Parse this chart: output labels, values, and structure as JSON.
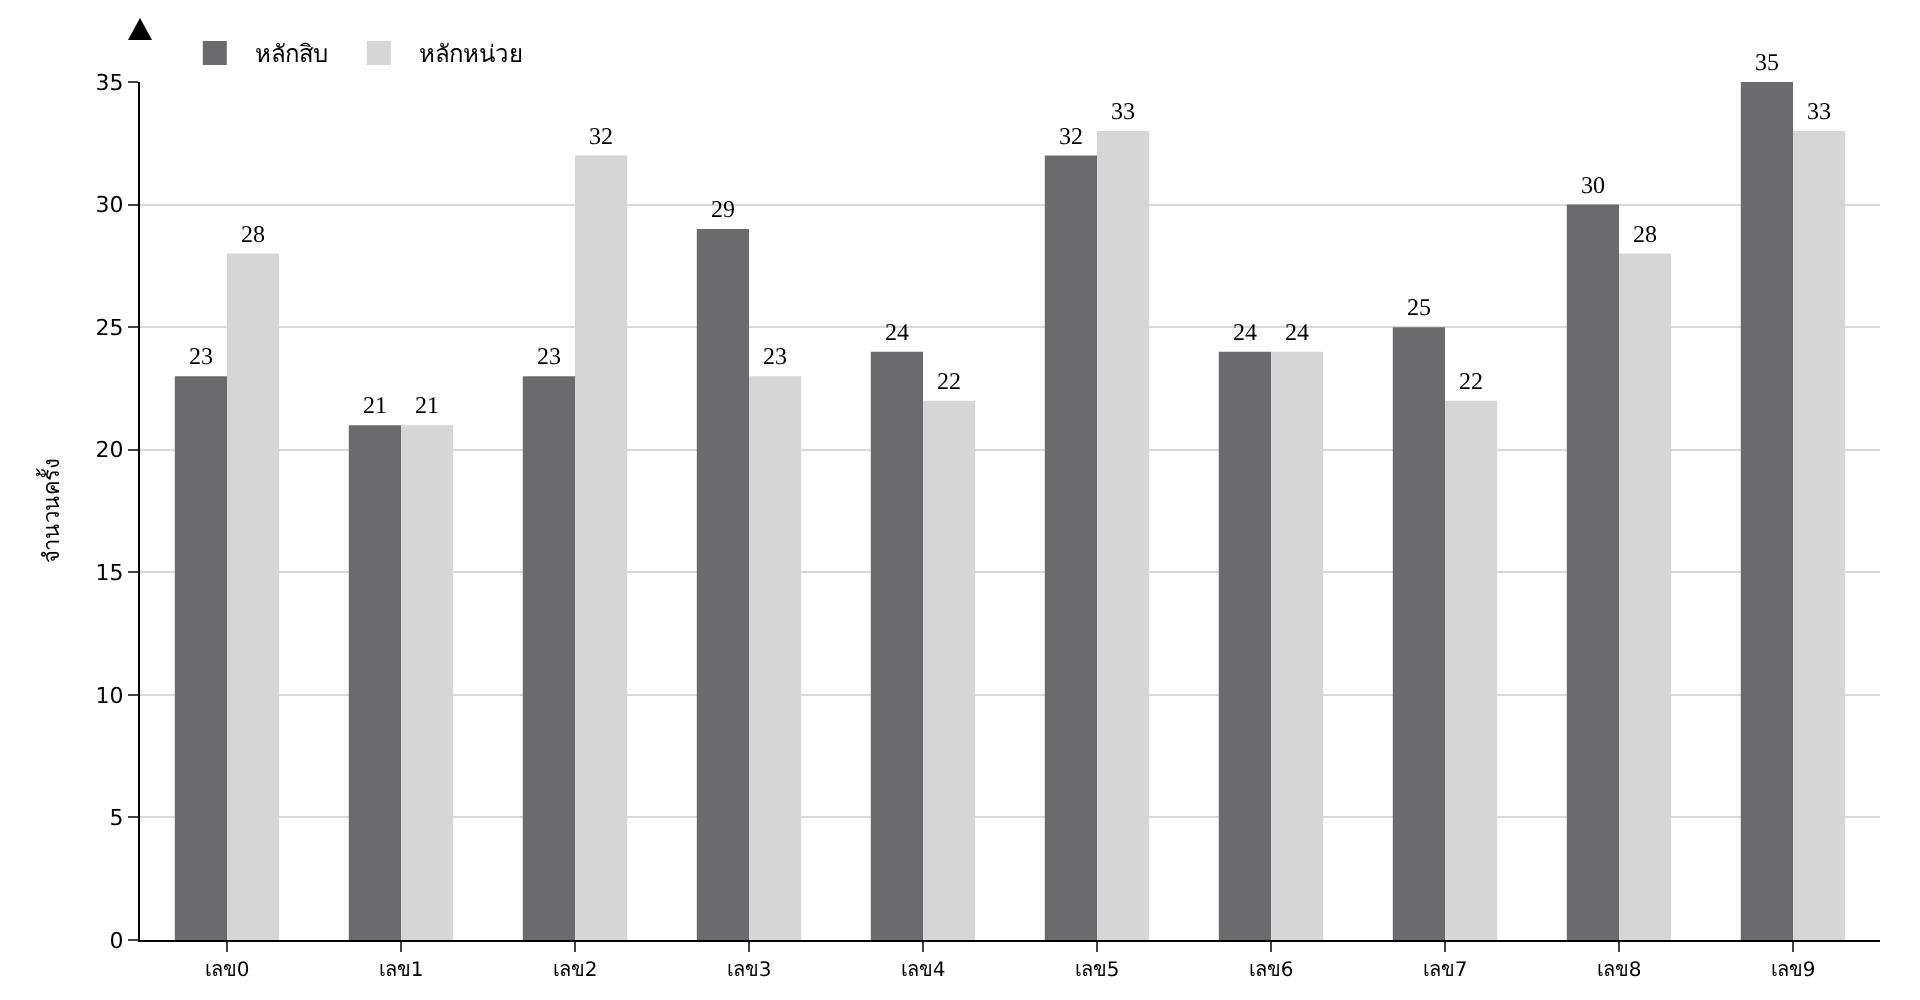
{
  "chart_data": {
    "type": "bar",
    "ylabel": "จำนวนครั้ง",
    "categories": [
      "เลข0",
      "เลข1",
      "เลข2",
      "เลข3",
      "เลข4",
      "เลข5",
      "เลข6",
      "เลข7",
      "เลข8",
      "เลข9"
    ],
    "series": [
      {
        "name": "หลักสิบ",
        "color": "#6b6b6d",
        "values": [
          23,
          21,
          23,
          29,
          24,
          32,
          24,
          25,
          30,
          35
        ]
      },
      {
        "name": "หลักหน่วย",
        "color": "#d6d6d6",
        "values": [
          28,
          21,
          32,
          23,
          22,
          33,
          24,
          22,
          28,
          33
        ]
      }
    ],
    "ylim": [
      0,
      35
    ],
    "yticks": [
      0,
      5,
      10,
      15,
      20,
      25,
      30,
      35
    ],
    "grid": "y",
    "legend": "top left",
    "data_labels": true
  }
}
